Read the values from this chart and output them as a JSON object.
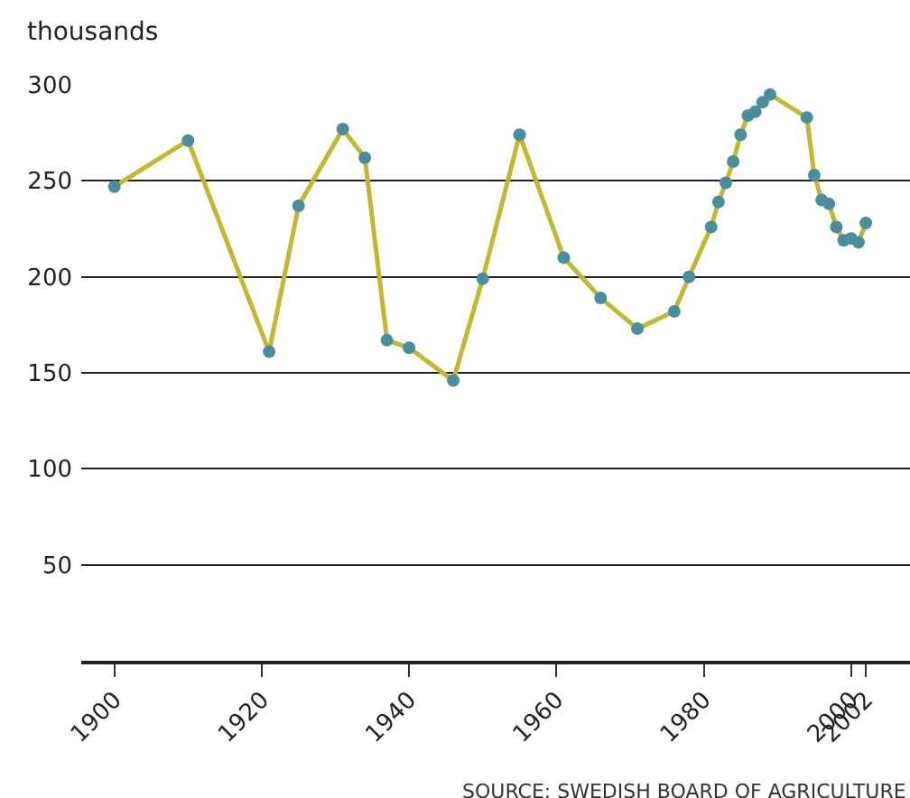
{
  "chart_data": {
    "type": "line",
    "ylabel": "thousands",
    "annotations": [
      "SOURCE: SWEDISH BOARD OF AGRICULTURE"
    ],
    "x": [
      1900,
      1910,
      1921,
      1925,
      1931,
      1934,
      1937,
      1940,
      1946,
      1950,
      1955,
      1961,
      1966,
      1971,
      1976,
      1978,
      1981,
      1982,
      1983,
      1984,
      1985,
      1986,
      1987,
      1988,
      1989,
      1994,
      1995,
      1996,
      1997,
      1998,
      1999,
      2000,
      2001,
      2002
    ],
    "series": [
      {
        "color": "#c2b72e",
        "values": [
          247,
          271,
          161,
          237,
          277,
          262,
          167,
          163,
          146,
          199,
          274,
          210,
          189,
          173,
          182,
          200,
          226,
          239,
          249,
          260,
          274,
          284,
          286,
          291,
          295,
          283,
          253,
          240,
          238,
          226,
          219,
          220,
          218,
          228
        ]
      },
      {
        "type": "scatter",
        "marker": "circle",
        "color": "#4a8d9c",
        "values": [
          247,
          271,
          161,
          237,
          277,
          262,
          167,
          163,
          146,
          199,
          274,
          210,
          189,
          173,
          182,
          200,
          226,
          239,
          249,
          260,
          274,
          284,
          286,
          291,
          295,
          283,
          253,
          240,
          238,
          226,
          219,
          220,
          218,
          228
        ]
      }
    ],
    "line_style": "solid",
    "grid": "y",
    "xlim": [
      1895.5,
      2008
    ],
    "xticks": [
      1900,
      1920,
      1940,
      1960,
      1980,
      2000,
      2002
    ],
    "ylim": [
      0,
      300
    ],
    "yticks": [
      50,
      100,
      150,
      200,
      250,
      300
    ]
  }
}
